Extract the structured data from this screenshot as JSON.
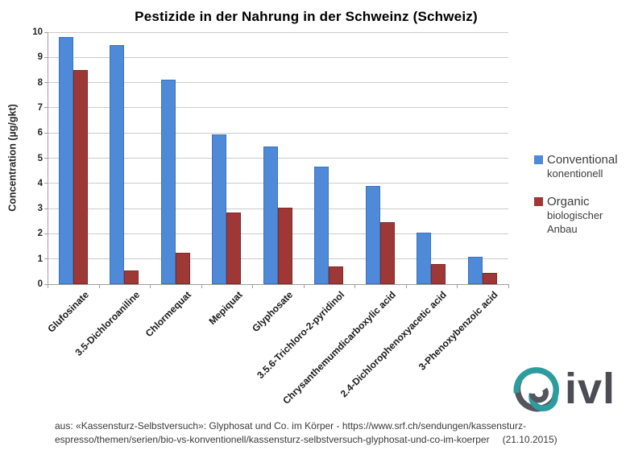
{
  "title": "Pestizide in der Nahrung in der Schweinz (Schweiz)",
  "chart_data": {
    "type": "bar",
    "title": "Pestizide in der Nahrung in der Schweinz (Schweiz)",
    "categories": [
      "Glufosinate",
      "3.5-Dichloroaniline",
      "Chlormequat",
      "Mepiquat",
      "Glyphosate",
      "3.5.6-Trichloro-2-pyridinol",
      "Chrysanthemumdicarboxylic acid",
      "2.4-Dichlorophenoxyacetic acid",
      "3-Phenoxybenzoic acid"
    ],
    "series": [
      {
        "name": "Conventional",
        "sublabel": "konentionell",
        "color": "#4e8ad8",
        "values": [
          9.8,
          9.5,
          8.1,
          5.95,
          5.45,
          4.65,
          3.9,
          2.05,
          1.1
        ]
      },
      {
        "name": "Organic",
        "sublabel": "biologischer Anbau",
        "color": "#9e3836",
        "values": [
          8.5,
          0.55,
          1.25,
          2.85,
          3.05,
          0.7,
          2.45,
          0.8,
          0.45
        ]
      }
    ],
    "xlabel": "",
    "ylabel": "Concentration (µg/gkt)",
    "ylim": [
      0,
      10
    ],
    "ytick_step": 1,
    "grid": true,
    "grid_color": "#cbcbcb",
    "axis_color": "#9f9f9f",
    "legend_position": "right"
  },
  "legend": {
    "items": [
      {
        "label": "Conventional",
        "line2": "konentionell",
        "line3": "",
        "color": "#4e8ad8"
      },
      {
        "label": "Organic",
        "line2": "biologischer",
        "line3": "Anbau",
        "color": "#9e3836"
      }
    ]
  },
  "footer": {
    "line1": "aus: «Kassensturz-Selbstversuch»: Glyphosat und Co. im Körper - https://www.srf.ch/sendungen/kassensturz-",
    "line2": "espresso/themen/serien/bio-vs-konventionell/kassensturz-selbstversuch-glyphosat-und-co-im-koerper",
    "date": "(21.10.2015)"
  },
  "logo": {
    "text": "ivl",
    "teal": "#2d9c9e",
    "gray": "#55555d"
  }
}
